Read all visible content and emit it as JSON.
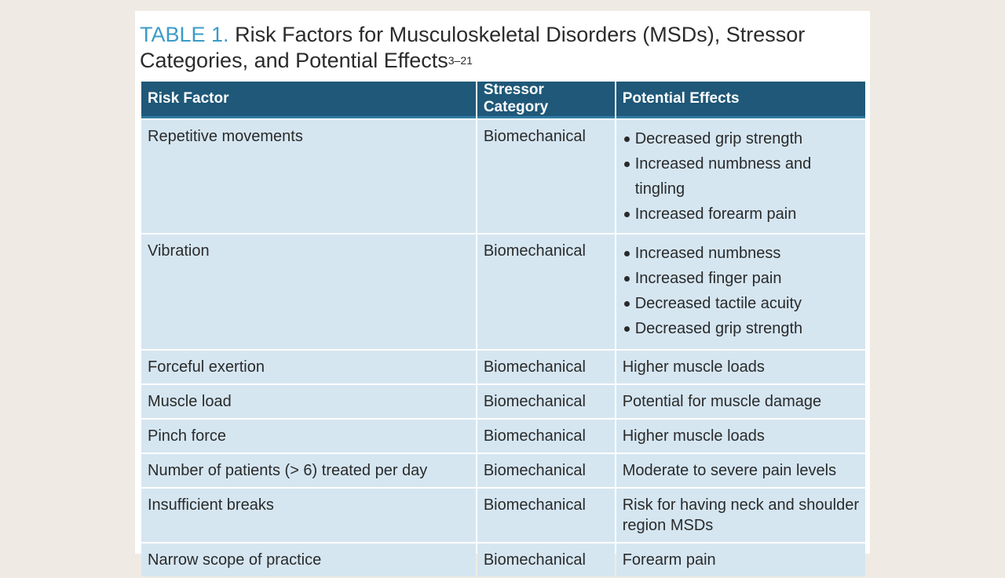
{
  "title": {
    "label": "TABLE 1.",
    "text": "Risk Factors for Musculoskeletal Disorders (MSDs), Stressor Categories, and Potential Effects",
    "refs": "3–21"
  },
  "table": {
    "headers": [
      "Risk Factor",
      "Stressor Category",
      "Potential Effects"
    ],
    "rows": [
      {
        "risk": "Repetitive movements",
        "category": "Biomechanical",
        "effects": [
          "Decreased grip strength",
          "Increased numbness and tingling",
          "Increased forearm pain"
        ]
      },
      {
        "risk": "Vibration",
        "category": "Biomechanical",
        "effects": [
          "Increased numbness",
          "Increased finger pain",
          "Decreased tactile acuity",
          "Decreased grip strength"
        ]
      },
      {
        "risk": "Forceful exertion",
        "category": "Biomechanical",
        "effect": "Higher muscle loads"
      },
      {
        "risk": "Muscle load",
        "category": "Biomechanical",
        "effect": "Potential for muscle damage"
      },
      {
        "risk": "Pinch force",
        "category": "Biomechanical",
        "effect": "Higher muscle loads"
      },
      {
        "risk": "Number of patients (> 6) treated per day",
        "category": "Biomechanical",
        "effect": "Moderate to severe pain levels"
      },
      {
        "risk": "Insufficient breaks",
        "category": "Biomechanical",
        "effect": "Risk for having neck and shoulder region MSDs"
      },
      {
        "risk": "Narrow scope of practice",
        "category": "Biomechanical",
        "effect": "Forearm pain"
      }
    ]
  }
}
